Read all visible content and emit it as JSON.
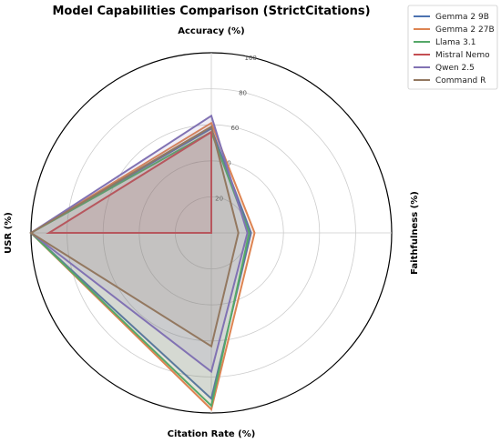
{
  "chart_data": {
    "type": "radar",
    "title": "Model Capabilities Comparison (StrictCitations)",
    "axes": [
      "Accuracy (%)",
      "Faithfulness (%)",
      "Citation Rate (%)",
      "USR (%)"
    ],
    "rlim": [
      0,
      100
    ],
    "rticks": [
      20,
      40,
      60,
      80,
      100
    ],
    "grid": true,
    "legend_position": "top-right",
    "series": [
      {
        "name": "Gemma 2 9B",
        "color": "#4c72b0",
        "values": [
          58,
          22,
          92,
          100
        ]
      },
      {
        "name": "Gemma 2 27B",
        "color": "#dd8452",
        "values": [
          61,
          24,
          98,
          100
        ]
      },
      {
        "name": "Llama 3.1",
        "color": "#55a868",
        "values": [
          56,
          21,
          96,
          100
        ]
      },
      {
        "name": "Mistral Nemo",
        "color": "#c44e52",
        "values": [
          56,
          0,
          0,
          90
        ]
      },
      {
        "name": "Qwen 2.5",
        "color": "#8172b3",
        "values": [
          65,
          20,
          77,
          100
        ]
      },
      {
        "name": "Command R",
        "color": "#937860",
        "values": [
          59,
          15,
          63,
          100
        ]
      }
    ]
  }
}
